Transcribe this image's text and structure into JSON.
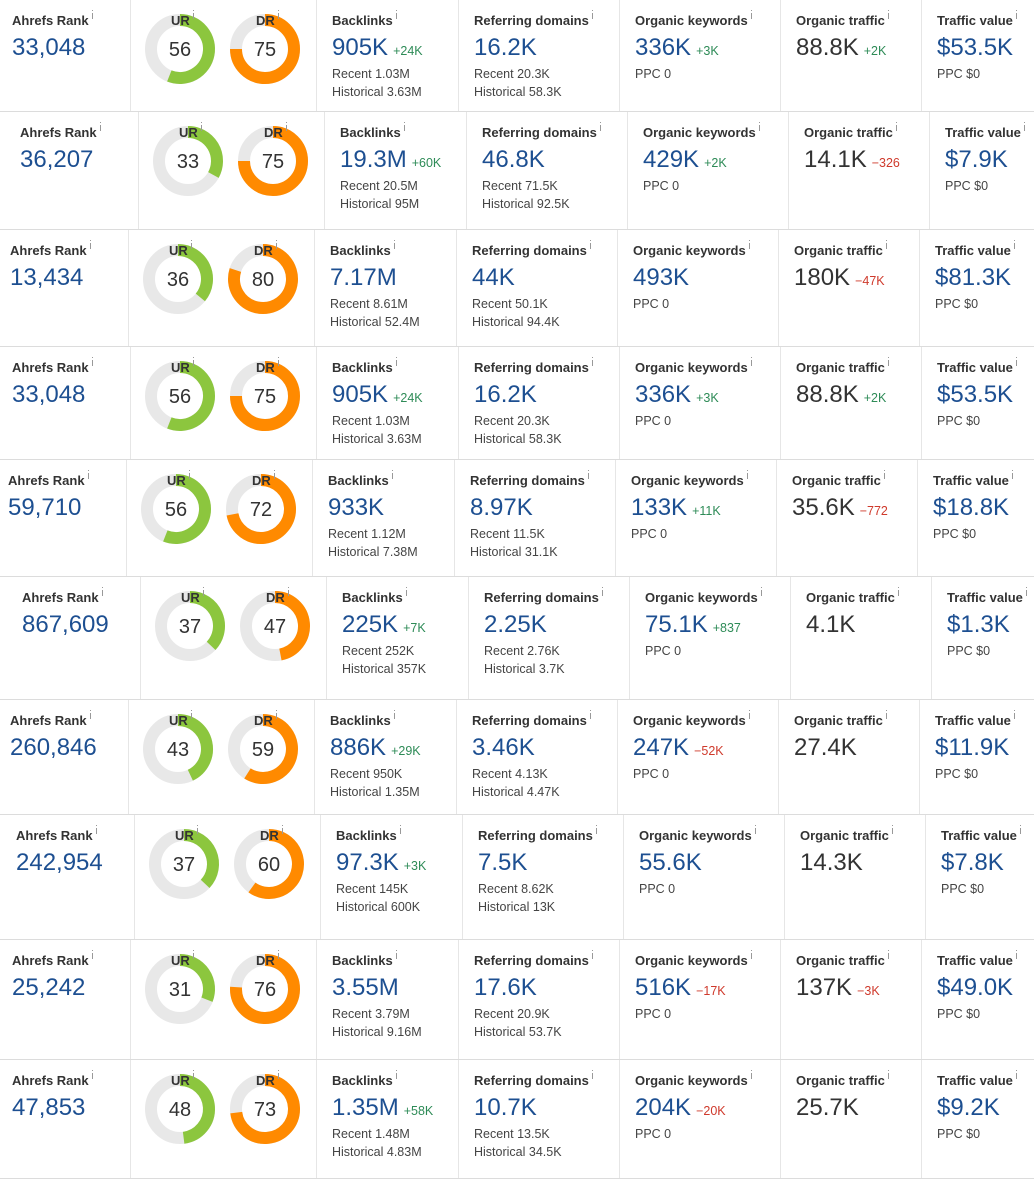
{
  "labels": {
    "rank": "Ahrefs Rank",
    "ur": "UR",
    "dr": "DR",
    "backlinks": "Backlinks",
    "referring_domains": "Referring domains",
    "organic_keywords": "Organic keywords",
    "organic_traffic": "Organic traffic",
    "traffic_value": "Traffic value"
  },
  "rows": [
    {
      "rank": "33,048",
      "ur": 56,
      "dr": 75,
      "backlinks": {
        "value": "905K",
        "delta": "+24K",
        "recent": "Recent 1.03M",
        "historical": "Historical 3.63M"
      },
      "referring_domains": {
        "value": "16.2K",
        "recent": "Recent 20.3K",
        "historical": "Historical 58.3K"
      },
      "organic_keywords": {
        "value": "336K",
        "delta": "+3K",
        "ppc": "PPC 0"
      },
      "organic_traffic": {
        "value": "88.8K",
        "delta": "+2K"
      },
      "traffic_value": {
        "value": "$53.5K",
        "ppc": "PPC $0"
      }
    },
    {
      "rank": "36,207",
      "ur": 33,
      "dr": 75,
      "backlinks": {
        "value": "19.3M",
        "delta": "+60K",
        "recent": "Recent 20.5M",
        "historical": "Historical 95M"
      },
      "referring_domains": {
        "value": "46.8K",
        "recent": "Recent 71.5K",
        "historical": "Historical 92.5K"
      },
      "organic_keywords": {
        "value": "429K",
        "delta": "+2K",
        "ppc": "PPC 0"
      },
      "organic_traffic": {
        "value": "14.1K",
        "delta": "−326"
      },
      "traffic_value": {
        "value": "$7.9K",
        "ppc": "PPC $0"
      }
    },
    {
      "rank": "13,434",
      "ur": 36,
      "dr": 80,
      "backlinks": {
        "value": "7.17M",
        "recent": "Recent 8.61M",
        "historical": "Historical 52.4M"
      },
      "referring_domains": {
        "value": "44K",
        "recent": "Recent 50.1K",
        "historical": "Historical 94.4K"
      },
      "organic_keywords": {
        "value": "493K",
        "ppc": "PPC 0"
      },
      "organic_traffic": {
        "value": "180K",
        "delta": "−47K"
      },
      "traffic_value": {
        "value": "$81.3K",
        "ppc": "PPC $0"
      }
    },
    {
      "rank": "33,048",
      "ur": 56,
      "dr": 75,
      "backlinks": {
        "value": "905K",
        "delta": "+24K",
        "recent": "Recent 1.03M",
        "historical": "Historical 3.63M"
      },
      "referring_domains": {
        "value": "16.2K",
        "recent": "Recent 20.3K",
        "historical": "Historical 58.3K"
      },
      "organic_keywords": {
        "value": "336K",
        "delta": "+3K",
        "ppc": "PPC 0"
      },
      "organic_traffic": {
        "value": "88.8K",
        "delta": "+2K"
      },
      "traffic_value": {
        "value": "$53.5K",
        "ppc": "PPC $0"
      }
    },
    {
      "rank": "59,710",
      "ur": 56,
      "dr": 72,
      "backlinks": {
        "value": "933K",
        "recent": "Recent 1.12M",
        "historical": "Historical 7.38M"
      },
      "referring_domains": {
        "value": "8.97K",
        "recent": "Recent 11.5K",
        "historical": "Historical 31.1K"
      },
      "organic_keywords": {
        "value": "133K",
        "delta": "+11K",
        "ppc": "PPC 0"
      },
      "organic_traffic": {
        "value": "35.6K",
        "delta": "−772"
      },
      "traffic_value": {
        "value": "$18.8K",
        "ppc": "PPC $0"
      }
    },
    {
      "rank": "867,609",
      "ur": 37,
      "dr": 47,
      "backlinks": {
        "value": "225K",
        "delta": "+7K",
        "recent": "Recent 252K",
        "historical": "Historical 357K"
      },
      "referring_domains": {
        "value": "2.25K",
        "recent": "Recent 2.76K",
        "historical": "Historical 3.7K"
      },
      "organic_keywords": {
        "value": "75.1K",
        "delta": "+837",
        "ppc": "PPC 0"
      },
      "organic_traffic": {
        "value": "4.1K"
      },
      "traffic_value": {
        "value": "$1.3K",
        "ppc": "PPC $0"
      }
    },
    {
      "rank": "260,846",
      "ur": 43,
      "dr": 59,
      "backlinks": {
        "value": "886K",
        "delta": "+29K",
        "recent": "Recent 950K",
        "historical": "Historical 1.35M"
      },
      "referring_domains": {
        "value": "3.46K",
        "recent": "Recent 4.13K",
        "historical": "Historical 4.47K"
      },
      "organic_keywords": {
        "value": "247K",
        "delta": "−52K",
        "ppc": "PPC 0"
      },
      "organic_traffic": {
        "value": "27.4K"
      },
      "traffic_value": {
        "value": "$11.9K",
        "ppc": "PPC $0"
      }
    },
    {
      "rank": "242,954",
      "ur": 37,
      "dr": 60,
      "backlinks": {
        "value": "97.3K",
        "delta": "+3K",
        "recent": "Recent 145K",
        "historical": "Historical 600K"
      },
      "referring_domains": {
        "value": "7.5K",
        "recent": "Recent 8.62K",
        "historical": "Historical 13K"
      },
      "organic_keywords": {
        "value": "55.6K",
        "ppc": "PPC 0"
      },
      "organic_traffic": {
        "value": "14.3K"
      },
      "traffic_value": {
        "value": "$7.8K",
        "ppc": "PPC $0"
      }
    },
    {
      "rank": "25,242",
      "ur": 31,
      "dr": 76,
      "backlinks": {
        "value": "3.55M",
        "recent": "Recent 3.79M",
        "historical": "Historical 9.16M"
      },
      "referring_domains": {
        "value": "17.6K",
        "recent": "Recent 20.9K",
        "historical": "Historical 53.7K"
      },
      "organic_keywords": {
        "value": "516K",
        "delta": "−17K",
        "ppc": "PPC 0"
      },
      "organic_traffic": {
        "value": "137K",
        "delta": "−3K"
      },
      "traffic_value": {
        "value": "$49.0K",
        "ppc": "PPC $0"
      }
    },
    {
      "rank": "47,853",
      "ur": 48,
      "dr": 73,
      "backlinks": {
        "value": "1.35M",
        "delta": "+58K",
        "recent": "Recent 1.48M",
        "historical": "Historical 4.83M"
      },
      "referring_domains": {
        "value": "10.7K",
        "recent": "Recent 13.5K",
        "historical": "Historical 34.5K"
      },
      "organic_keywords": {
        "value": "204K",
        "delta": "−20K",
        "ppc": "PPC 0"
      },
      "organic_traffic": {
        "value": "25.7K"
      },
      "traffic_value": {
        "value": "$9.2K",
        "ppc": "PPC $0"
      }
    }
  ]
}
